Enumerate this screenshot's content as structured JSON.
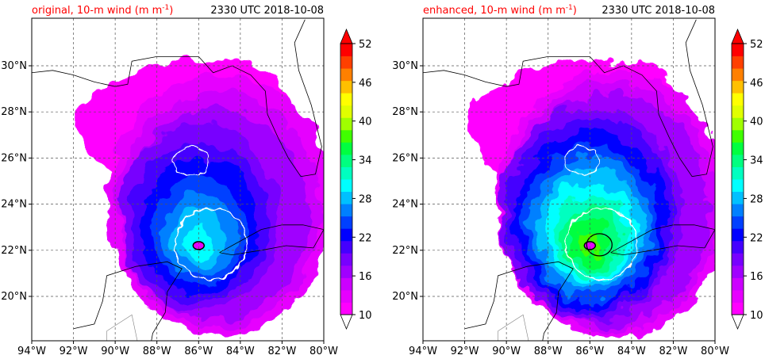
{
  "valid_time": "2330 UTC 2018-10-08",
  "colorbar": {
    "levels": [
      10,
      12,
      14,
      16,
      18,
      20,
      22,
      24,
      26,
      28,
      30,
      32,
      34,
      36,
      38,
      40,
      42,
      44,
      46,
      48,
      50,
      52
    ],
    "tick_labels": [
      "10",
      "16",
      "22",
      "28",
      "34",
      "40",
      "46",
      "52"
    ],
    "colors": [
      "#ff00ff",
      "#e600ff",
      "#cc00ff",
      "#a000ff",
      "#7800ff",
      "#4400ff",
      "#0000ff",
      "#0040ff",
      "#0080ff",
      "#00c0ff",
      "#00ffff",
      "#00ffc0",
      "#00ff80",
      "#00ff40",
      "#40ff00",
      "#a0ff00",
      "#e0ff00",
      "#ffff00",
      "#ffc000",
      "#ff8000",
      "#ff4000",
      "#ff0000"
    ],
    "extend": "both"
  },
  "panels": [
    {
      "title": "original, 10-m wind (m m",
      "title_sup": "-1",
      "title_end": ")",
      "time": "2330 UTC 2018-10-08",
      "max_wind": 30,
      "extra_contour": false
    },
    {
      "title": "enhanced, 10-m wind (m m",
      "title_sup": "-1",
      "title_end": ")",
      "time": "2330 UTC 2018-10-08",
      "max_wind": 38,
      "extra_contour": true
    }
  ],
  "chart_data": [
    {
      "type": "heatmap",
      "title": "original, 10-m wind (m m-1)",
      "subtitle": "2330 UTC 2018-10-08",
      "x_ticks": [
        "94°W",
        "92°W",
        "90°W",
        "88°W",
        "86°W",
        "84°W",
        "82°W",
        "80°W"
      ],
      "y_ticks": [
        "20°N",
        "22°N",
        "24°N",
        "26°N",
        "28°N",
        "30°N"
      ],
      "x_range_lon": [
        -94,
        -80
      ],
      "y_range_lat": [
        18,
        32
      ],
      "grid": true,
      "storm_center": {
        "lon": -86.0,
        "lat": 22.1
      },
      "max_wind": 30,
      "colorbar_range": [
        10,
        52
      ]
    },
    {
      "type": "heatmap",
      "title": "enhanced, 10-m wind (m m-1)",
      "subtitle": "2330 UTC 2018-10-08",
      "x_ticks": [
        "94°W",
        "92°W",
        "90°W",
        "88°W",
        "86°W",
        "84°W",
        "82°W",
        "80°W"
      ],
      "y_ticks": [
        "20°N",
        "22°N",
        "24°N",
        "26°N",
        "28°N",
        "30°N"
      ],
      "x_range_lon": [
        -94,
        -80
      ],
      "y_range_lat": [
        18,
        32
      ],
      "grid": true,
      "storm_center": {
        "lon": -86.0,
        "lat": 22.1
      },
      "max_wind": 38,
      "colorbar_range": [
        10,
        52
      ]
    }
  ]
}
